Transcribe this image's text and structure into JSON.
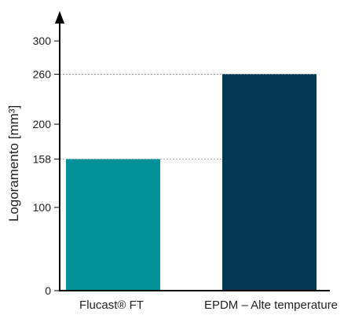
{
  "chart_data": {
    "type": "bar",
    "title": "",
    "xlabel": "",
    "ylabel": "Logoramento [mm³]",
    "categories": [
      "Flucast® FT",
      "EPDM – Alte temperature"
    ],
    "values": [
      158,
      260
    ],
    "yticks": [
      0,
      100,
      158,
      200,
      260,
      300
    ],
    "reference_lines": [
      158,
      260
    ],
    "ylim": [
      0,
      340
    ],
    "grid": false,
    "legend": "none",
    "colors": [
      "#00909a",
      "#033953"
    ]
  }
}
